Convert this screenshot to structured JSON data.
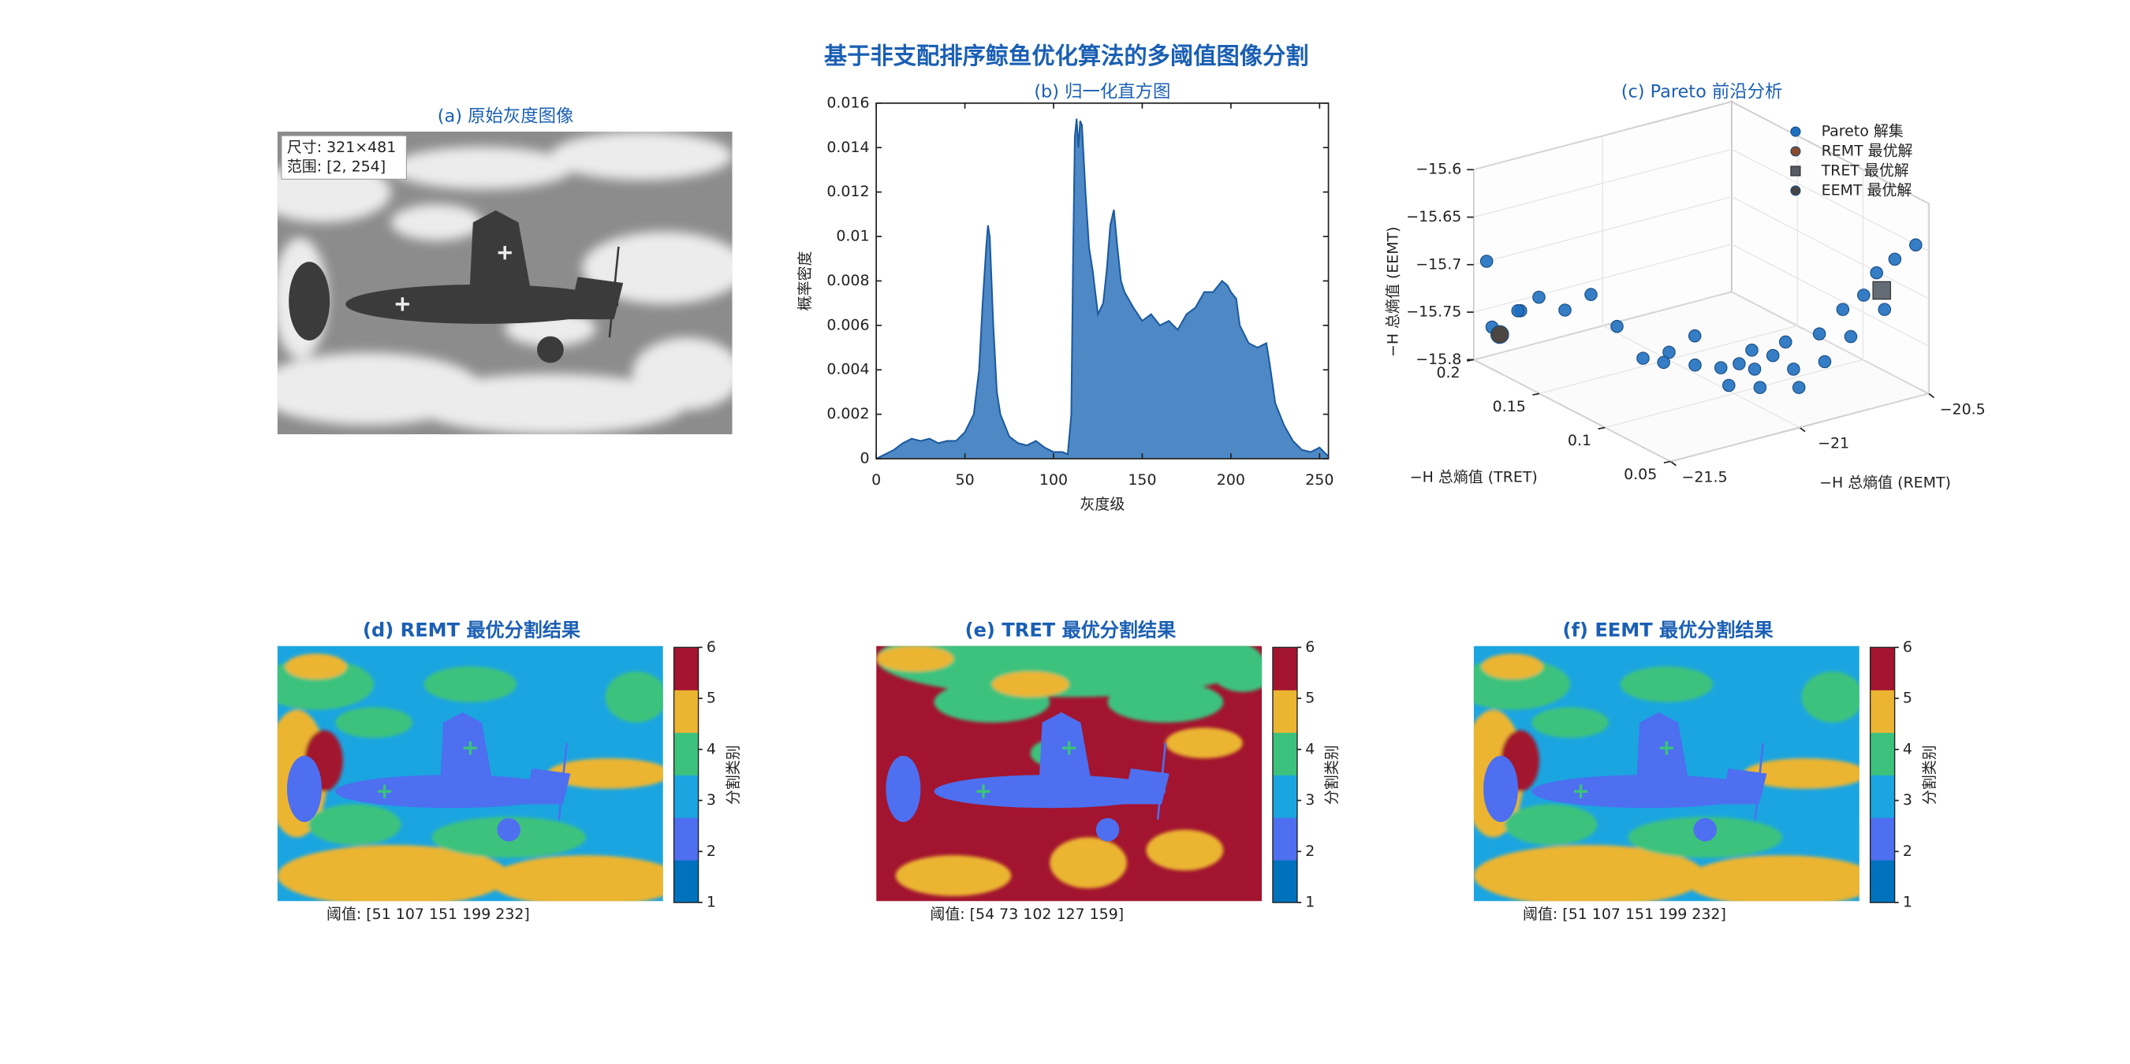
{
  "title": "基于非支配排序鲸鱼优化算法的多阈值图像分割",
  "chart_data": [
    {
      "type": "image",
      "title": "(a) 原始灰度图像",
      "annotations": [
        "尺寸: 321×481",
        "范围: [2, 254]"
      ]
    },
    {
      "type": "area",
      "title": "(b) 归一化直方图",
      "x_label": "灰度级",
      "y_label": "概率密度",
      "color": "#3f7fc0",
      "edge_color": "#1d5aa0",
      "x": [
        0,
        5,
        10,
        15,
        20,
        25,
        30,
        35,
        40,
        45,
        50,
        55,
        58,
        60,
        62,
        63,
        64,
        66,
        68,
        70,
        75,
        80,
        85,
        90,
        95,
        100,
        105,
        108,
        110,
        111,
        112,
        113,
        114,
        115,
        116,
        118,
        120,
        122,
        125,
        128,
        130,
        132,
        134,
        136,
        138,
        140,
        145,
        150,
        155,
        160,
        165,
        170,
        175,
        180,
        185,
        190,
        195,
        198,
        200,
        203,
        205,
        210,
        215,
        220,
        222,
        225,
        230,
        235,
        240,
        245,
        250,
        255
      ],
      "values": [
        0,
        0.0002,
        0.0004,
        0.0007,
        0.0009,
        0.0008,
        0.0009,
        0.0007,
        0.0008,
        0.0008,
        0.0012,
        0.002,
        0.004,
        0.007,
        0.0095,
        0.0105,
        0.01,
        0.006,
        0.003,
        0.002,
        0.001,
        0.0007,
        0.0006,
        0.0008,
        0.0005,
        0.0003,
        0.0003,
        0.0002,
        0.002,
        0.009,
        0.0145,
        0.0153,
        0.014,
        0.0152,
        0.015,
        0.012,
        0.0095,
        0.0085,
        0.0065,
        0.007,
        0.0085,
        0.0105,
        0.0112,
        0.0095,
        0.008,
        0.0075,
        0.0068,
        0.0062,
        0.0065,
        0.006,
        0.0062,
        0.0058,
        0.0065,
        0.0068,
        0.0075,
        0.0075,
        0.008,
        0.0078,
        0.0075,
        0.0072,
        0.006,
        0.0052,
        0.005,
        0.0052,
        0.0042,
        0.0025,
        0.0015,
        0.0008,
        0.0004,
        0.0003,
        0.0005,
        0.0001
      ],
      "xlim": [
        0,
        255
      ],
      "xticks": [
        0,
        50,
        100,
        150,
        200,
        250
      ],
      "ylim": [
        0,
        0.016
      ],
      "yticks": [
        0,
        0.002,
        0.004,
        0.006,
        0.008,
        0.01,
        0.012,
        0.014,
        0.016
      ]
    },
    {
      "type": "scatter3d",
      "title": "(c) Pareto 前沿分析",
      "x_label": "−H 总熵值 (REMT)",
      "y_label": "−H 总熵值 (TRET)",
      "z_label": "−H 总熵值 (EEMT)",
      "xlim": [
        -21.5,
        -20.5
      ],
      "xticks": [
        {
          "value": -21.5,
          "label": "−21.5"
        },
        {
          "value": -21,
          "label": "−21"
        },
        {
          "value": -20.5,
          "label": "−20.5"
        }
      ],
      "ylim": [
        0.05,
        0.2
      ],
      "yticks": [
        0.05,
        0.1,
        0.15,
        0.2
      ],
      "zlim": [
        -15.8,
        -15.6
      ],
      "zticks": [
        {
          "value": -15.8,
          "label": "−15.8"
        },
        {
          "value": -15.75,
          "label": "−15.75"
        },
        {
          "value": -15.7,
          "label": "−15.7"
        },
        {
          "value": -15.65,
          "label": "−15.65"
        },
        {
          "value": -15.6,
          "label": "−15.6"
        }
      ],
      "series": [
        {
          "name": "Pareto 解集",
          "color": "#1f6fbf",
          "marker": "circle",
          "x": [
            -21.48,
            -21.45,
            -21.42,
            -21.4,
            -21.38,
            -21.35,
            -21.3,
            -21.25,
            -21.2,
            -21.15,
            -21.12,
            -21.1,
            -21.05,
            -21.02,
            -21.0,
            -20.98,
            -20.95,
            -20.92,
            -20.9,
            -20.88,
            -20.85,
            -20.82,
            -20.8,
            -20.75,
            -20.72,
            -20.7,
            -20.68,
            -20.65,
            -20.62,
            -20.6,
            -20.58,
            -20.55
          ],
          "y": [
            0.19,
            0.2,
            0.18,
            0.17,
            0.19,
            0.16,
            0.15,
            0.14,
            0.13,
            0.12,
            0.13,
            0.11,
            0.12,
            0.1,
            0.11,
            0.1,
            0.09,
            0.1,
            0.09,
            0.11,
            0.08,
            0.09,
            0.1,
            0.08,
            0.09,
            0.07,
            0.08,
            0.07,
            0.06,
            0.07,
            0.06,
            0.05
          ],
          "z": [
            -15.76,
            -15.7,
            -15.74,
            -15.72,
            -15.75,
            -15.73,
            -15.71,
            -15.74,
            -15.77,
            -15.76,
            -15.78,
            -15.77,
            -15.75,
            -15.79,
            -15.78,
            -15.77,
            -15.79,
            -15.78,
            -15.76,
            -15.77,
            -15.79,
            -15.78,
            -15.76,
            -15.77,
            -15.75,
            -15.74,
            -15.72,
            -15.7,
            -15.71,
            -15.68,
            -15.66,
            -15.64
          ]
        },
        {
          "name": "REMT 最优解",
          "color": "#8b4a2b",
          "marker": "circle",
          "x": [
            -21.45
          ],
          "y": [
            0.19
          ],
          "z": [
            -15.77
          ]
        },
        {
          "name": "TRET 最优解",
          "color": "#555c66",
          "marker": "square",
          "x": [
            -20.58
          ],
          "y": [
            0.07
          ],
          "z": [
            -15.7
          ]
        },
        {
          "name": "EEMT 最优解",
          "color": "#444444",
          "marker": "circle",
          "x": [
            -21.45
          ],
          "y": [
            0.19
          ],
          "z": [
            -15.77
          ]
        }
      ]
    },
    {
      "type": "segmentation",
      "title": "(d) REMT 最优分割结果",
      "annotation": "阈值: [51  107  151  199  232]",
      "colorbar_label": "分割类别",
      "colors": [
        "#0072bd",
        "#4d6ff0",
        "#1ba5e0",
        "#3dc27d",
        "#ebb532",
        "#a2142f"
      ],
      "clim": [
        1,
        6
      ],
      "cticks": [
        1,
        2,
        3,
        4,
        5,
        6
      ]
    },
    {
      "type": "segmentation",
      "title": "(e) TRET 最优分割结果",
      "annotation": "阈值: [54  73  102  127  159]",
      "colorbar_label": "分割类别",
      "colors": [
        "#0072bd",
        "#4d6ff0",
        "#1ba5e0",
        "#3dc27d",
        "#ebb532",
        "#a2142f"
      ],
      "clim": [
        1,
        6
      ],
      "cticks": [
        1,
        2,
        3,
        4,
        5,
        6
      ]
    },
    {
      "type": "segmentation",
      "title": "(f) EEMT 最优分割结果",
      "annotation": "阈值: [51  107  151  199  232]",
      "colorbar_label": "分割类别",
      "colors": [
        "#0072bd",
        "#4d6ff0",
        "#1ba5e0",
        "#3dc27d",
        "#ebb532",
        "#a2142f"
      ],
      "clim": [
        1,
        6
      ],
      "cticks": [
        1,
        2,
        3,
        4,
        5,
        6
      ]
    }
  ]
}
